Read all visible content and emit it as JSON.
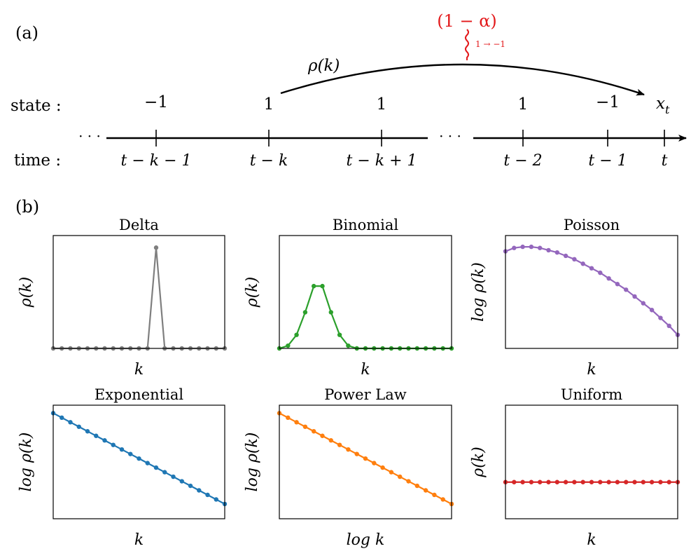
{
  "panel_a": {
    "label": "(a)",
    "state_label": "state :",
    "time_label": "time :",
    "ellipsis": "· · ·",
    "states": [
      "−1",
      "1",
      "1",
      "1",
      "−1"
    ],
    "xt_main": "x",
    "xt_sub": "t",
    "times": [
      "t − k − 1",
      "t − k",
      "t − k + 1",
      "t − 2",
      "t − 1",
      "t"
    ],
    "rho_label": "ρ(k)",
    "flip_prob": "(1 − α)",
    "flip_note": "1 → −1",
    "colors": {
      "flip": "#e31a1c",
      "ink": "#000000"
    }
  },
  "panel_b": {
    "label": "(b)"
  },
  "chart_data": [
    {
      "type": "line",
      "title": "Delta",
      "xlabel": "k",
      "ylabel": "ρ(k)",
      "color": "#7f7f7f",
      "x": [
        0,
        1,
        2,
        3,
        4,
        5,
        6,
        7,
        8,
        9,
        10,
        11,
        12,
        13,
        14,
        15,
        16,
        17,
        18,
        19,
        20
      ],
      "values": [
        0,
        0,
        0,
        0,
        0,
        0,
        0,
        0,
        0,
        0,
        0,
        0,
        1,
        0,
        0,
        0,
        0,
        0,
        0,
        0,
        0
      ],
      "ylim": [
        0,
        1.12
      ],
      "ticks": false
    },
    {
      "type": "line",
      "title": "Binomial",
      "xlabel": "k",
      "ylabel": "ρ(k)",
      "color": "#2ca02c",
      "x": [
        0,
        1,
        2,
        3,
        4,
        5,
        6,
        7,
        8,
        9,
        10,
        11,
        12,
        13,
        14,
        15,
        16,
        17,
        18,
        19,
        20
      ],
      "values": [
        0,
        0.03,
        0.15,
        0.4,
        0.69,
        0.69,
        0.4,
        0.15,
        0.03,
        0,
        0,
        0,
        0,
        0,
        0,
        0,
        0,
        0,
        0,
        0,
        0
      ],
      "ylim": [
        0,
        1.25
      ],
      "ticks": false
    },
    {
      "type": "line",
      "title": "Poisson",
      "xlabel": "k",
      "ylabel": "log ρ(k)",
      "color": "#9467bd",
      "x": [
        0,
        1,
        2,
        3,
        4,
        5,
        6,
        7,
        8,
        9,
        10,
        11,
        12,
        13,
        14,
        15,
        16,
        17,
        18,
        19,
        20
      ],
      "values": [
        0.86,
        0.89,
        0.9,
        0.9,
        0.89,
        0.87,
        0.85,
        0.82,
        0.79,
        0.75,
        0.71,
        0.67,
        0.62,
        0.57,
        0.52,
        0.46,
        0.4,
        0.34,
        0.27,
        0.2,
        0.12
      ],
      "ylim": [
        0,
        1
      ],
      "ticks": false
    },
    {
      "type": "line",
      "title": "Exponential",
      "xlabel": "k",
      "ylabel": "log ρ(k)",
      "color": "#1f77b4",
      "x": [
        0,
        1,
        2,
        3,
        4,
        5,
        6,
        7,
        8,
        9,
        10,
        11,
        12,
        13,
        14,
        15,
        16,
        17,
        18,
        19,
        20
      ],
      "values": [
        0.93,
        0.89,
        0.85,
        0.81,
        0.77,
        0.73,
        0.69,
        0.65,
        0.61,
        0.57,
        0.53,
        0.49,
        0.45,
        0.41,
        0.37,
        0.33,
        0.29,
        0.25,
        0.21,
        0.17,
        0.13
      ],
      "ylim": [
        0,
        1
      ],
      "ticks": false
    },
    {
      "type": "line",
      "title": "Power Law",
      "xlabel": "log k",
      "ylabel": "log ρ(k)",
      "color": "#ff7f0e",
      "x": [
        0,
        1,
        2,
        3,
        4,
        5,
        6,
        7,
        8,
        9,
        10,
        11,
        12,
        13,
        14,
        15,
        16,
        17,
        18,
        19,
        20
      ],
      "values": [
        0.93,
        0.89,
        0.85,
        0.81,
        0.77,
        0.73,
        0.69,
        0.65,
        0.61,
        0.57,
        0.53,
        0.49,
        0.45,
        0.41,
        0.37,
        0.33,
        0.29,
        0.25,
        0.21,
        0.17,
        0.13
      ],
      "ylim": [
        0,
        1
      ],
      "ticks": false
    },
    {
      "type": "line",
      "title": "Uniform",
      "xlabel": "k",
      "ylabel": "ρ(k)",
      "color": "#d62728",
      "x": [
        0,
        1,
        2,
        3,
        4,
        5,
        6,
        7,
        8,
        9,
        10,
        11,
        12,
        13,
        14,
        15,
        16,
        17,
        18,
        19,
        20
      ],
      "values": [
        0.5,
        0.5,
        0.5,
        0.5,
        0.5,
        0.5,
        0.5,
        0.5,
        0.5,
        0.5,
        0.5,
        0.5,
        0.5,
        0.5,
        0.5,
        0.5,
        0.5,
        0.5,
        0.5,
        0.5,
        0.5
      ],
      "ylim": [
        0,
        1.55
      ],
      "ticks": false
    }
  ]
}
